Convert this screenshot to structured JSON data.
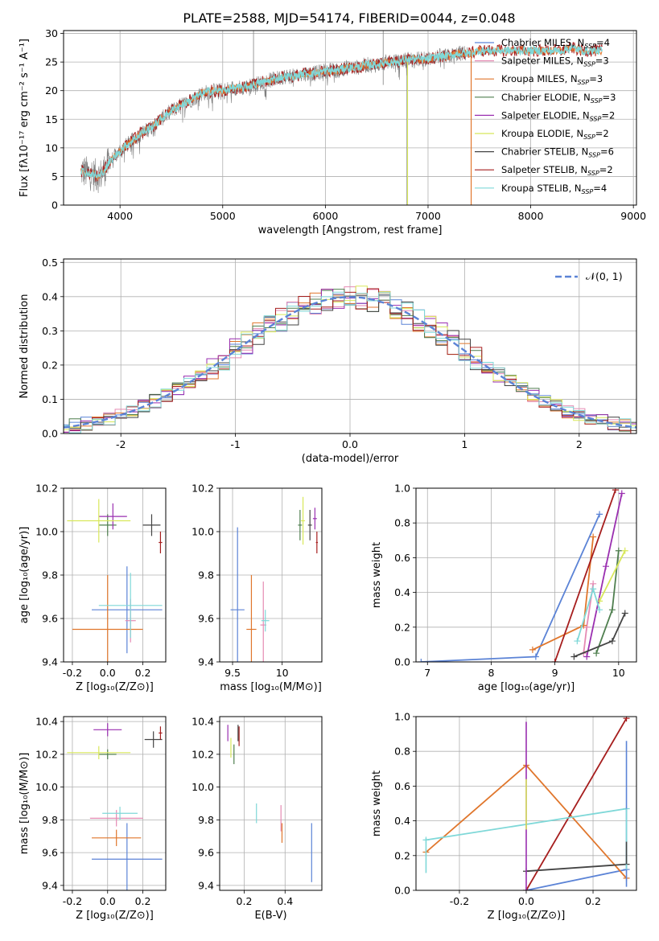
{
  "title": "PLATE=2588, MJD=54174, FIBERID=0044, z=0.048",
  "colors": {
    "chabrier_miles": "#5b83d6",
    "salpeter_miles": "#e58ab3",
    "kroupa_miles": "#e0762c",
    "chabrier_elodie": "#4f7f4f",
    "salpeter_elodie": "#9a2fb0",
    "kroupa_elodie": "#d8e85a",
    "chabrier_stelib": "#444444",
    "salpeter_stelib": "#a61e1e",
    "kroupa_stelib": "#7fd8d8",
    "spectrum": "#808080",
    "gauss": "#5b83d6",
    "grid": "#b0b0b0"
  },
  "legend": [
    {
      "key": "chabrier_miles",
      "text": "Chabrier MILES, N",
      "sub": "SSP",
      "tail": "=4"
    },
    {
      "key": "salpeter_miles",
      "text": "Salpeter MILES, N",
      "sub": "SSP",
      "tail": "=3"
    },
    {
      "key": "kroupa_miles",
      "text": "Kroupa MILES, N",
      "sub": "SSP",
      "tail": "=3"
    },
    {
      "key": "chabrier_elodie",
      "text": "Chabrier ELODIE, N",
      "sub": "SSP",
      "tail": "=3"
    },
    {
      "key": "salpeter_elodie",
      "text": "Salpeter ELODIE, N",
      "sub": "SSP",
      "tail": "=2"
    },
    {
      "key": "kroupa_elodie",
      "text": "Kroupa ELODIE, N",
      "sub": "SSP",
      "tail": "=2"
    },
    {
      "key": "chabrier_stelib",
      "text": "Chabrier STELIB, N",
      "sub": "SSP",
      "tail": "=6"
    },
    {
      "key": "salpeter_stelib",
      "text": "Salpeter STELIB, N",
      "sub": "SSP",
      "tail": "=2"
    },
    {
      "key": "kroupa_stelib",
      "text": "Kroupa STELIB, N",
      "sub": "SSP",
      "tail": "=4"
    }
  ],
  "chart_data": [
    {
      "id": "spectrum",
      "type": "line",
      "xlabel": "wavelength [Angstrom, rest frame]",
      "ylabel": "Flux [fλ10⁻¹⁷ erg cm⁻² s⁻¹ A⁻¹]",
      "xlim": [
        3450,
        9030
      ],
      "ylim": [
        0,
        30.5
      ],
      "xticks": [
        4000,
        5000,
        6000,
        7000,
        8000,
        9000
      ],
      "yticks": [
        0,
        5,
        10,
        15,
        20,
        25,
        30
      ],
      "continuum": [
        [
          3620,
          6
        ],
        [
          3700,
          5.5
        ],
        [
          3800,
          5
        ],
        [
          3900,
          7.5
        ],
        [
          4000,
          9.5
        ],
        [
          4100,
          11
        ],
        [
          4200,
          12.5
        ],
        [
          4300,
          13.5
        ],
        [
          4400,
          15
        ],
        [
          4500,
          16.5
        ],
        [
          4600,
          17.5
        ],
        [
          4700,
          18.5
        ],
        [
          4800,
          19.5
        ],
        [
          4900,
          20
        ],
        [
          5000,
          20
        ],
        [
          5100,
          20.5
        ],
        [
          5200,
          20.5
        ],
        [
          5300,
          21
        ],
        [
          5400,
          21.5
        ],
        [
          5500,
          22
        ],
        [
          5600,
          22.5
        ],
        [
          5700,
          22.5
        ],
        [
          5800,
          23
        ],
        [
          5900,
          23
        ],
        [
          6000,
          23.5
        ],
        [
          6100,
          23.5
        ],
        [
          6200,
          24
        ],
        [
          6300,
          24
        ],
        [
          6400,
          24.5
        ],
        [
          6500,
          24.5
        ],
        [
          6600,
          25
        ],
        [
          6700,
          25
        ],
        [
          6800,
          25.5
        ],
        [
          6900,
          25.5
        ],
        [
          7000,
          25.5
        ],
        [
          7100,
          26
        ],
        [
          7200,
          26
        ],
        [
          7300,
          26.5
        ],
        [
          7400,
          26.5
        ],
        [
          7500,
          27
        ],
        [
          7600,
          27
        ],
        [
          7700,
          27
        ],
        [
          7800,
          27
        ],
        [
          7900,
          27
        ],
        [
          8000,
          27
        ],
        [
          8100,
          27
        ],
        [
          8200,
          27
        ],
        [
          8300,
          27
        ],
        [
          8400,
          27.5
        ],
        [
          8500,
          27
        ],
        [
          8600,
          27
        ],
        [
          8700,
          27
        ]
      ],
      "spectrum_range": [
        3620,
        7390
      ],
      "model_range": [
        3620,
        8700
      ],
      "kroupa_elodie_cut": 6800,
      "kroupa_miles_cut": 7420
    },
    {
      "id": "residuals",
      "type": "histogram",
      "xlabel": "(data-model)/error",
      "ylabel": "Normed distribution",
      "xlim": [
        -2.5,
        2.5
      ],
      "ylim": [
        0,
        0.51
      ],
      "xticks": [
        -2,
        -1,
        0,
        1,
        2
      ],
      "yticks": [
        0.0,
        0.1,
        0.2,
        0.3,
        0.4,
        0.5
      ],
      "legend_label": "𝒩(0, 1)",
      "bin_width": 0.1
    },
    {
      "id": "age_vs_Z",
      "type": "scatter",
      "xlabel": "Z [log₁₀(Z/Z⊙)]",
      "ylabel": "age  [log₁₀(age/yr)]",
      "xlim": [
        -0.25,
        0.33
      ],
      "ylim": [
        9.4,
        10.2
      ],
      "xticks": [
        -0.2,
        0.0,
        0.2
      ],
      "yticks": [
        9.4,
        9.6,
        9.8,
        10.0,
        10.2
      ],
      "points": [
        {
          "c": "chabrier_miles",
          "x": 0.11,
          "xe": 0.2,
          "y": 9.64,
          "ye": 0.2
        },
        {
          "c": "salpeter_miles",
          "x": 0.13,
          "xe": 0.03,
          "y": 9.59,
          "ye": 0.1
        },
        {
          "c": "kroupa_miles",
          "x": 0.0,
          "xe": 0.2,
          "y": 9.55,
          "ye": 0.25
        },
        {
          "c": "chabrier_elodie",
          "x": 0.0,
          "xe": 0.05,
          "y": 10.03,
          "ye": 0.05
        },
        {
          "c": "salpeter_elodie",
          "x": 0.03,
          "xe": 0.08,
          "y": 10.07,
          "ye": 0.06
        },
        {
          "c": "kroupa_elodie",
          "x": -0.05,
          "xe": 0.18,
          "y": 10.05,
          "ye": 0.1
        },
        {
          "c": "chabrier_stelib",
          "x": 0.25,
          "xe": 0.05,
          "y": 10.03,
          "ye": 0.05
        },
        {
          "c": "salpeter_stelib",
          "x": 0.3,
          "xe": 0.01,
          "y": 9.95,
          "ye": 0.05
        },
        {
          "c": "kroupa_stelib",
          "x": 0.13,
          "xe": 0.18,
          "y": 9.66,
          "ye": 0.15
        }
      ]
    },
    {
      "id": "age_vs_mass",
      "type": "scatter",
      "xlabel": "mass [log₁₀(M/M⊙)]",
      "ylabel": "",
      "xlim": [
        9.37,
        10.4
      ],
      "ylim": [
        9.4,
        10.2
      ],
      "xticks": [
        9.5,
        10.0
      ],
      "yticks": [
        9.4,
        9.6,
        9.8,
        10.0,
        10.2
      ],
      "points": [
        {
          "c": "chabrier_miles",
          "x": 9.55,
          "xe": 0.07,
          "y": 9.64,
          "ye": 0.38
        },
        {
          "c": "salpeter_miles",
          "x": 9.81,
          "xe": 0.03,
          "y": 9.57,
          "ye": 0.2
        },
        {
          "c": "kroupa_miles",
          "x": 9.69,
          "xe": 0.05,
          "y": 9.55,
          "ye": 0.25
        },
        {
          "c": "chabrier_elodie",
          "x": 10.18,
          "xe": 0.02,
          "y": 10.03,
          "ye": 0.07
        },
        {
          "c": "salpeter_elodie",
          "x": 10.33,
          "xe": 0.02,
          "y": 10.06,
          "ye": 0.05
        },
        {
          "c": "kroupa_elodie",
          "x": 10.21,
          "xe": 0.02,
          "y": 10.05,
          "ye": 0.11
        },
        {
          "c": "chabrier_stelib",
          "x": 10.28,
          "xe": 0.02,
          "y": 10.03,
          "ye": 0.07
        },
        {
          "c": "salpeter_stelib",
          "x": 10.35,
          "xe": 0.01,
          "y": 9.95,
          "ye": 0.05
        },
        {
          "c": "kroupa_stelib",
          "x": 9.83,
          "xe": 0.04,
          "y": 9.59,
          "ye": 0.05
        }
      ]
    },
    {
      "id": "weight_vs_age",
      "type": "line",
      "xlabel": "age  [log₁₀(age/yr)]",
      "ylabel": "mass weight",
      "xlim": [
        6.82,
        10.28
      ],
      "ylim": [
        0,
        1
      ],
      "xticks": [
        7,
        8,
        9,
        10
      ],
      "yticks": [
        0.0,
        0.2,
        0.4,
        0.6,
        0.8,
        1.0
      ],
      "lines": [
        {
          "c": "chabrier_miles",
          "x": [
            6.9,
            8.7,
            9.7
          ],
          "y": [
            0.0,
            0.03,
            0.85
          ]
        },
        {
          "c": "salpeter_miles",
          "x": [
            9.45,
            9.5,
            9.6
          ],
          "y": [
            0.05,
            0.2,
            0.45
          ]
        },
        {
          "c": "kroupa_miles",
          "x": [
            8.65,
            9.45,
            9.6
          ],
          "y": [
            0.07,
            0.21,
            0.72
          ]
        },
        {
          "c": "chabrier_elodie",
          "x": [
            9.65,
            9.9,
            10.0
          ],
          "y": [
            0.05,
            0.3,
            0.64
          ]
        },
        {
          "c": "salpeter_elodie",
          "x": [
            9.5,
            9.8,
            10.05
          ],
          "y": [
            0.03,
            0.55,
            0.97
          ]
        },
        {
          "c": "kroupa_elodie",
          "x": [
            9.7,
            10.1
          ],
          "y": [
            0.35,
            0.64
          ]
        },
        {
          "c": "chabrier_stelib",
          "x": [
            9.3,
            9.9,
            10.1
          ],
          "y": [
            0.03,
            0.12,
            0.28
          ]
        },
        {
          "c": "salpeter_stelib",
          "x": [
            9.0,
            9.95
          ],
          "y": [
            0.0,
            0.99
          ]
        },
        {
          "c": "kroupa_stelib",
          "x": [
            9.35,
            9.6,
            9.7
          ],
          "y": [
            0.12,
            0.42,
            0.3
          ]
        }
      ]
    },
    {
      "id": "mass_vs_Z",
      "type": "scatter",
      "xlabel": "Z [log₁₀(Z/Z⊙)]",
      "ylabel": "mass [log₁₀(M/M⊙)]",
      "xlim": [
        -0.25,
        0.33
      ],
      "ylim": [
        9.37,
        10.43
      ],
      "xticks": [
        -0.2,
        0.0,
        0.2
      ],
      "yticks": [
        9.4,
        9.6,
        9.8,
        10.0,
        10.2,
        10.4
      ],
      "points": [
        {
          "c": "chabrier_miles",
          "x": 0.11,
          "xe": 0.2,
          "y": 9.56,
          "ye": 0.22
        },
        {
          "c": "salpeter_miles",
          "x": 0.05,
          "xe": 0.15,
          "y": 9.81,
          "ye": 0.05
        },
        {
          "c": "kroupa_miles",
          "x": 0.05,
          "xe": 0.14,
          "y": 9.69,
          "ye": 0.05
        },
        {
          "c": "chabrier_elodie",
          "x": 0.0,
          "xe": 0.05,
          "y": 10.2,
          "ye": 0.03
        },
        {
          "c": "salpeter_elodie",
          "x": 0.0,
          "xe": 0.08,
          "y": 10.35,
          "ye": 0.04
        },
        {
          "c": "kroupa_elodie",
          "x": -0.05,
          "xe": 0.18,
          "y": 10.21,
          "ye": 0.04
        },
        {
          "c": "chabrier_stelib",
          "x": 0.26,
          "xe": 0.05,
          "y": 10.29,
          "ye": 0.05
        },
        {
          "c": "salpeter_stelib",
          "x": 0.3,
          "xe": 0.01,
          "y": 10.33,
          "ye": 0.04
        },
        {
          "c": "kroupa_stelib",
          "x": 0.07,
          "xe": 0.1,
          "y": 9.84,
          "ye": 0.04
        }
      ]
    },
    {
      "id": "mass_vs_ebv",
      "type": "scatter",
      "xlabel": "E(B-V)",
      "ylabel": "",
      "xlim": [
        0.08,
        0.58
      ],
      "ylim": [
        9.37,
        10.43
      ],
      "xticks": [
        0.2,
        0.4
      ],
      "yticks": [
        9.4,
        9.6,
        9.8,
        10.0,
        10.2,
        10.4
      ],
      "points": [
        {
          "c": "chabrier_miles",
          "x": 0.53,
          "xe": 0.0,
          "y": 9.6,
          "ye": 0.18
        },
        {
          "c": "salpeter_miles",
          "x": 0.38,
          "xe": 0.0,
          "y": 9.81,
          "ye": 0.08
        },
        {
          "c": "kroupa_miles",
          "x": 0.385,
          "xe": 0.0,
          "y": 9.72,
          "ye": 0.06
        },
        {
          "c": "chabrier_elodie",
          "x": 0.15,
          "xe": 0.0,
          "y": 10.2,
          "ye": 0.06
        },
        {
          "c": "salpeter_elodie",
          "x": 0.12,
          "xe": 0.0,
          "y": 10.33,
          "ye": 0.05
        },
        {
          "c": "kroupa_elodie",
          "x": 0.135,
          "xe": 0.0,
          "y": 10.24,
          "ye": 0.06
        },
        {
          "c": "chabrier_stelib",
          "x": 0.17,
          "xe": 0.0,
          "y": 10.33,
          "ye": 0.05
        },
        {
          "c": "salpeter_stelib",
          "x": 0.175,
          "xe": 0.0,
          "y": 10.31,
          "ye": 0.06
        },
        {
          "c": "kroupa_stelib",
          "x": 0.26,
          "xe": 0.0,
          "y": 9.84,
          "ye": 0.06
        }
      ]
    },
    {
      "id": "weight_vs_Z",
      "type": "line",
      "xlabel": "Z [log₁₀(Z/Z⊙)]",
      "ylabel": "mass weight",
      "xlim": [
        -0.33,
        0.33
      ],
      "ylim": [
        0,
        1
      ],
      "xticks": [
        -0.2,
        0.0,
        0.2
      ],
      "yticks": [
        0.0,
        0.2,
        0.4,
        0.6,
        0.8,
        1.0
      ],
      "lines": [
        {
          "c": "chabrier_miles",
          "x": [
            0.0,
            0.3
          ],
          "y": [
            0.0,
            0.12
          ]
        },
        {
          "c": "kroupa_miles",
          "x": [
            -0.3,
            0.0,
            0.3
          ],
          "y": [
            0.22,
            0.72,
            0.07
          ]
        },
        {
          "c": "salpeter_stelib",
          "x": [
            0.0,
            0.3
          ],
          "y": [
            0.0,
            0.99
          ]
        },
        {
          "c": "chabrier_stelib",
          "x": [
            0.0,
            0.3
          ],
          "y": [
            0.11,
            0.15
          ]
        },
        {
          "c": "kroupa_stelib",
          "x": [
            -0.3,
            0.3
          ],
          "y": [
            0.29,
            0.47
          ]
        }
      ],
      "vbars": [
        {
          "c": "salpeter_elodie",
          "x": 0.0,
          "y0": 0.0,
          "y1": 0.97
        },
        {
          "c": "kroupa_elodie",
          "x": 0.0,
          "y0": 0.35,
          "y1": 0.64
        },
        {
          "c": "chabrier_miles",
          "x": 0.3,
          "y0": 0.02,
          "y1": 0.86
        },
        {
          "c": "kroupa_stelib",
          "x": 0.3,
          "y0": 0.12,
          "y1": 0.47
        },
        {
          "c": "kroupa_stelib",
          "x": -0.3,
          "y0": 0.1,
          "y1": 0.3
        },
        {
          "c": "chabrier_stelib",
          "x": 0.3,
          "y0": 0.15,
          "y1": 0.28
        }
      ]
    }
  ]
}
